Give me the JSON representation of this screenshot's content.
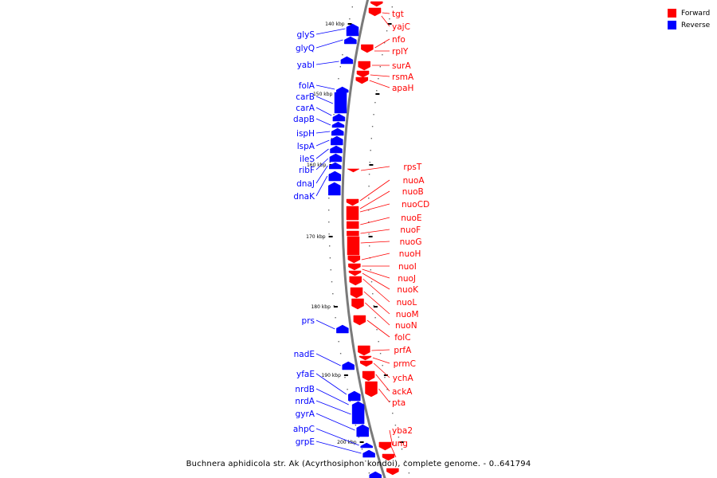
{
  "caption": "Buchnera aphidicola str. Ak (Acyrthosiphon kondoi), complete genome. - 0..641794",
  "legend": {
    "forward_label": "Forward",
    "reverse_label": "Reverse",
    "forward_color": "#ff0000",
    "reverse_color": "#0000ff"
  },
  "axis_ticks": [
    "140 kbp",
    "150 kbp",
    "160 kbp",
    "170 kbp",
    "180 kbp",
    "190 kbp",
    "200 kbp"
  ],
  "genes": {
    "forward": [
      "tgt",
      "yajC",
      "nfo",
      "rplY",
      "surA",
      "rsmA",
      "apaH",
      "rpsT",
      "nuoA",
      "nuoB",
      "nuoCD",
      "nuoE",
      "nuoF",
      "nuoG",
      "nuoH",
      "nuoI",
      "nuoJ",
      "nuoK",
      "nuoL",
      "nuoM",
      "nuoN",
      "folC",
      "prfA",
      "prmC",
      "ychA",
      "ackA",
      "pta",
      "yba2",
      "ung"
    ],
    "reverse": [
      "glyS",
      "glyQ",
      "yabI",
      "folA",
      "carB",
      "carA",
      "dapB",
      "ispH",
      "lspA",
      "ileS",
      "ribF",
      "dnaJ",
      "dnaK",
      "prs",
      "nadE",
      "yfaE",
      "nrdB",
      "nrdA",
      "gyrA",
      "ahpC",
      "grpE"
    ]
  }
}
